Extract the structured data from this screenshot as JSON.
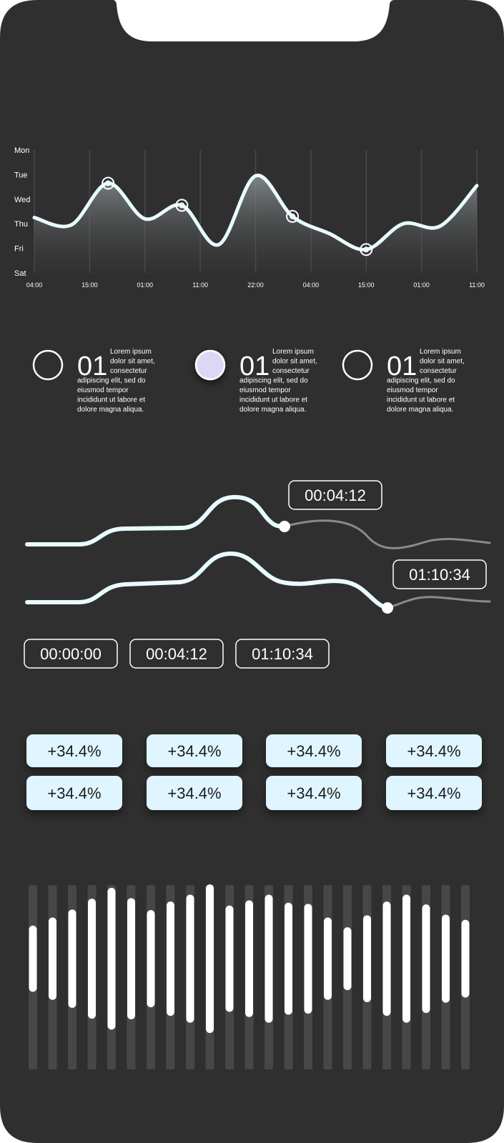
{
  "colors": {
    "background": "#2f2f2f",
    "line": "#e8fbff",
    "accent_lavender": "#ddd6f5",
    "pill_fill": "#dff5ff",
    "pill_text": "#1f1f1f",
    "grid": "#4a4a4a",
    "dim_line": "#8a8a8a"
  },
  "chart_data": {
    "type": "area",
    "y_tick_labels": [
      "Mon",
      "Tue",
      "Wed",
      "Thu",
      "Fri",
      "Sat"
    ],
    "x_tick_labels": [
      "04:00",
      "15:00",
      "01:00",
      "11:00",
      "22:00",
      "04:00",
      "15:00",
      "01:00",
      "11:00"
    ],
    "series": [
      {
        "y_day_index": [
          2.75,
          3.05,
          1.35,
          2.8,
          2.25,
          3.85,
          1.05,
          2.7,
          3.4,
          4.05,
          3.0,
          3.1,
          1.45
        ]
      }
    ],
    "highlighted_points": [
      2,
      4,
      7,
      9
    ],
    "grid": true,
    "legend": "none"
  },
  "info_items": [
    {
      "number": "01",
      "text": "Lorem ipsum dolor sit amet, consectetur adipiscing elit, sed do eiusmod tempor incididunt ut labore et dolore magna aliqua.",
      "selected": false
    },
    {
      "number": "01",
      "text": "Lorem ipsum dolor sit amet, consectetur adipiscing elit, sed do eiusmod tempor incididunt ut labore et dolore magna aliqua.",
      "selected": true
    },
    {
      "number": "01",
      "text": "Lorem ipsum dolor sit amet, consectetur adipiscing elit, sed do eiusmod tempor incididunt ut labore et dolore magna aliqua.",
      "selected": false
    }
  ],
  "timeline": {
    "track1_time": "00:04:12",
    "track2_time": "01:10:34",
    "track1_progress": 0.55,
    "track2_progress": 0.77,
    "time_chips": [
      "00:00:00",
      "00:04:12",
      "01:10:34"
    ]
  },
  "pills": {
    "row1": [
      "+34.4%",
      "+34.4%",
      "+34.4%",
      "+34.4%"
    ],
    "row2": [
      "+34.4%",
      "+34.4%",
      "+34.4%",
      "+34.4%"
    ]
  },
  "equalizer": {
    "levels": [
      0.58,
      0.72,
      0.86,
      1.05,
      1.24,
      1.06,
      0.85,
      1.0,
      1.12,
      1.3,
      0.93,
      1.02,
      1.12,
      0.98,
      0.96,
      0.72,
      0.55,
      0.76,
      1.0,
      1.12,
      0.95,
      0.77,
      0.68
    ]
  }
}
